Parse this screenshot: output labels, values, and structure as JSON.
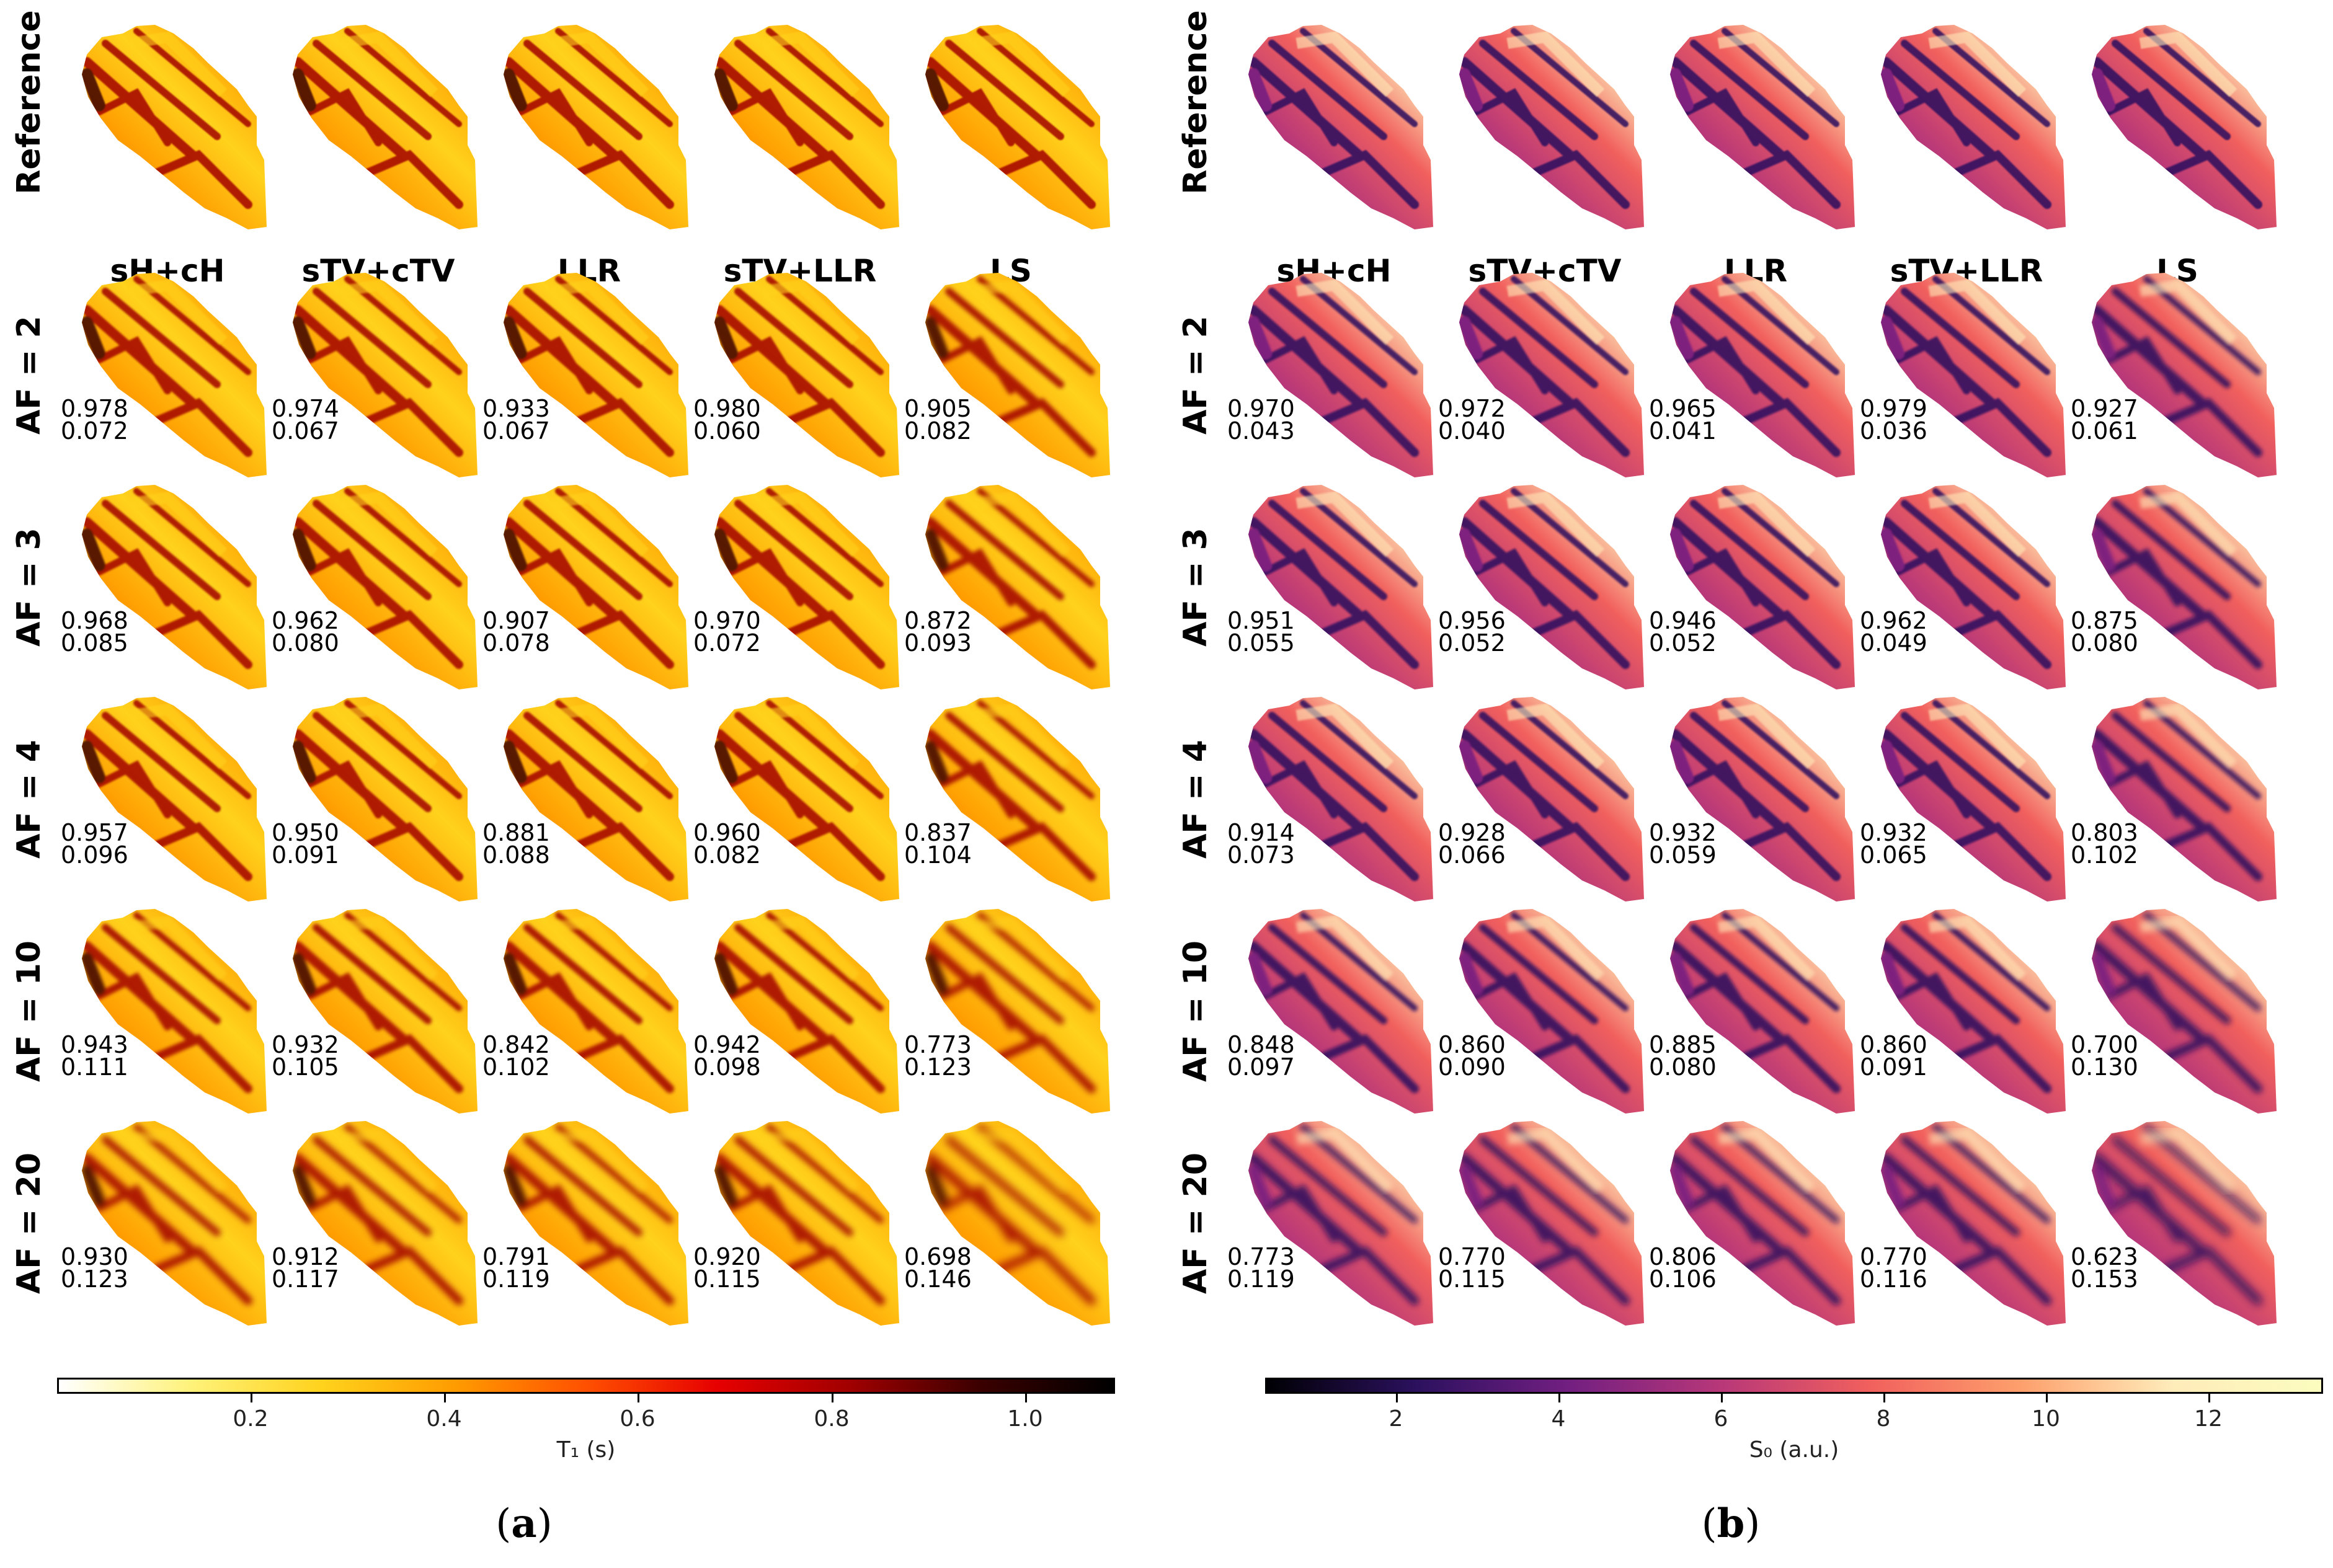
{
  "row_labels": [
    "Reference",
    "AF = 2",
    "AF = 3",
    "AF = 4",
    "AF = 10",
    "AF = 20"
  ],
  "column_headers": [
    "sH+cH",
    "sTV+cTV",
    "LLR",
    "sTV+LLR",
    "LS"
  ],
  "panel_a": {
    "letter": "a",
    "colorbar_label": "T₁  (s)",
    "colorbar_ticks": [
      "0.2",
      "0.4",
      "0.6",
      "0.8",
      "1.0"
    ],
    "colormap": [
      "#ffffff",
      "#fff27a",
      "#ffd21c",
      "#ff9c00",
      "#ff5000",
      "#e60000",
      "#a10000",
      "#3a0000",
      "#000000"
    ],
    "metrics": [
      [
        [
          "0.978",
          "0.072"
        ],
        [
          "0.974",
          "0.067"
        ],
        [
          "0.933",
          "0.067"
        ],
        [
          "0.980",
          "0.060"
        ],
        [
          "0.905",
          "0.082"
        ]
      ],
      [
        [
          "0.968",
          "0.085"
        ],
        [
          "0.962",
          "0.080"
        ],
        [
          "0.907",
          "0.078"
        ],
        [
          "0.970",
          "0.072"
        ],
        [
          "0.872",
          "0.093"
        ]
      ],
      [
        [
          "0.957",
          "0.096"
        ],
        [
          "0.950",
          "0.091"
        ],
        [
          "0.881",
          "0.088"
        ],
        [
          "0.960",
          "0.082"
        ],
        [
          "0.837",
          "0.104"
        ]
      ],
      [
        [
          "0.943",
          "0.111"
        ],
        [
          "0.932",
          "0.105"
        ],
        [
          "0.842",
          "0.102"
        ],
        [
          "0.942",
          "0.098"
        ],
        [
          "0.773",
          "0.123"
        ]
      ],
      [
        [
          "0.930",
          "0.123"
        ],
        [
          "0.912",
          "0.117"
        ],
        [
          "0.791",
          "0.119"
        ],
        [
          "0.920",
          "0.115"
        ],
        [
          "0.698",
          "0.146"
        ]
      ]
    ]
  },
  "panel_b": {
    "letter": "b",
    "colorbar_label": "S₀ (a.u.)",
    "colorbar_ticks": [
      "2",
      "4",
      "6",
      "8",
      "10",
      "12"
    ],
    "colormap": [
      "#000004",
      "#2c115f",
      "#721f81",
      "#b73779",
      "#f1605d",
      "#fd9f6c",
      "#feebb9",
      "#fcfdbf"
    ],
    "metrics": [
      [
        [
          "0.970",
          "0.043"
        ],
        [
          "0.972",
          "0.040"
        ],
        [
          "0.965",
          "0.041"
        ],
        [
          "0.979",
          "0.036"
        ],
        [
          "0.927",
          "0.061"
        ]
      ],
      [
        [
          "0.951",
          "0.055"
        ],
        [
          "0.956",
          "0.052"
        ],
        [
          "0.946",
          "0.052"
        ],
        [
          "0.962",
          "0.049"
        ],
        [
          "0.875",
          "0.080"
        ]
      ],
      [
        [
          "0.914",
          "0.073"
        ],
        [
          "0.928",
          "0.066"
        ],
        [
          "0.932",
          "0.059"
        ],
        [
          "0.932",
          "0.065"
        ],
        [
          "0.803",
          "0.102"
        ]
      ],
      [
        [
          "0.848",
          "0.097"
        ],
        [
          "0.860",
          "0.090"
        ],
        [
          "0.885",
          "0.080"
        ],
        [
          "0.860",
          "0.091"
        ],
        [
          "0.700",
          "0.130"
        ]
      ],
      [
        [
          "0.773",
          "0.119"
        ],
        [
          "0.770",
          "0.115"
        ],
        [
          "0.806",
          "0.106"
        ],
        [
          "0.770",
          "0.116"
        ],
        [
          "0.623",
          "0.153"
        ]
      ]
    ]
  }
}
